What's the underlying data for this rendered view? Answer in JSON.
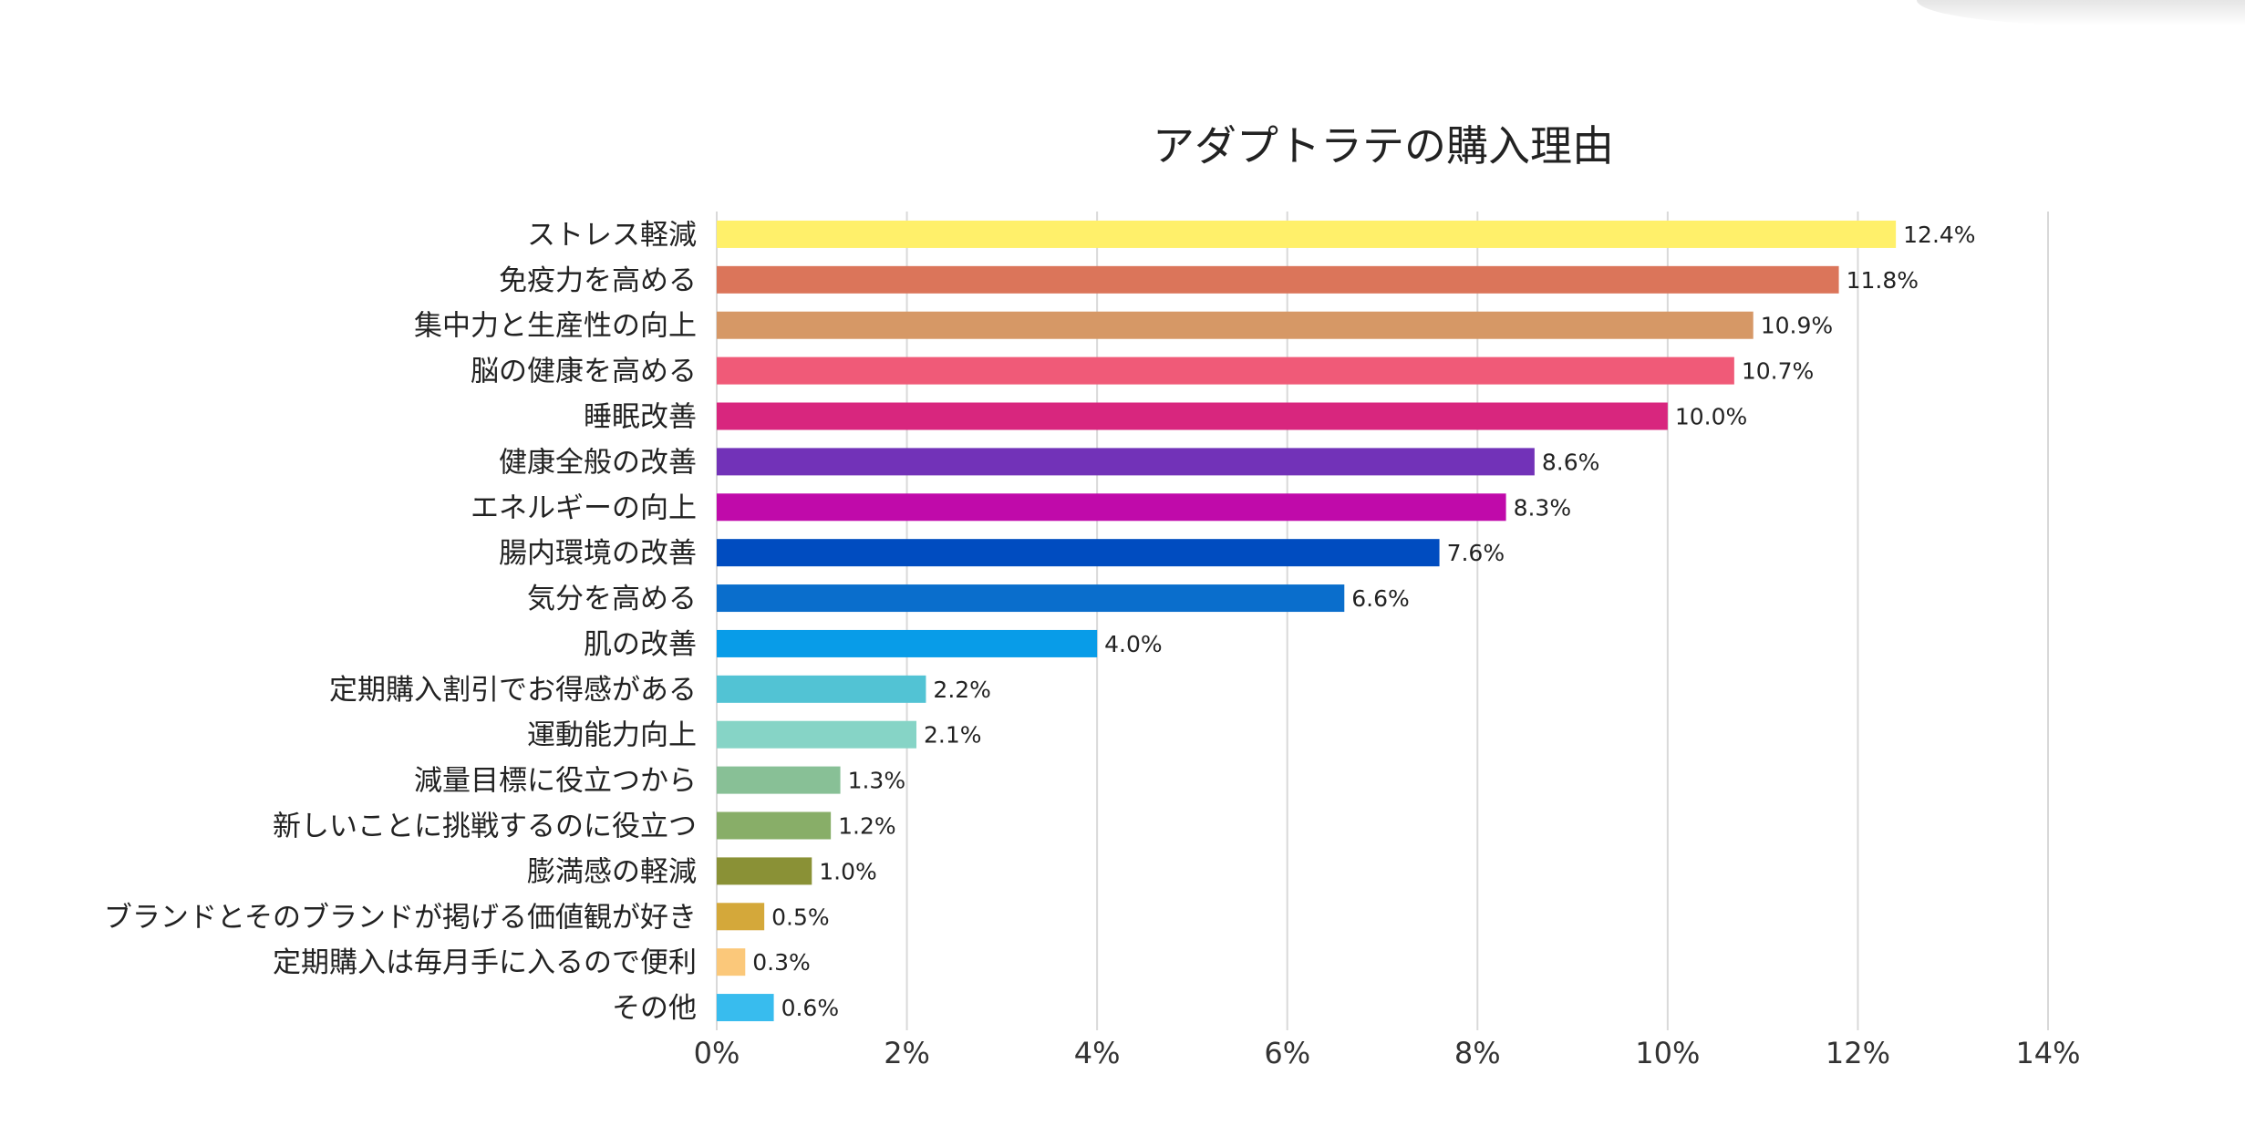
{
  "chart_data": {
    "type": "bar",
    "orientation": "horizontal",
    "title": "アダプトラテの購入理由",
    "xlabel": "",
    "ylabel": "",
    "xlim": [
      0,
      14
    ],
    "x_ticks": [
      0,
      2,
      4,
      6,
      8,
      10,
      12,
      14
    ],
    "x_tick_labels": [
      "0%",
      "2%",
      "4%",
      "6%",
      "8%",
      "10%",
      "12%",
      "14%"
    ],
    "grid": true,
    "legend": "none",
    "categories": [
      "ストレス軽減",
      "免疫力を高める",
      "集中力と生産性の向上",
      "脳の健康を高める",
      "睡眠改善",
      "健康全般の改善",
      "エネルギーの向上",
      "腸内環境の改善",
      "気分を高める",
      "肌の改善",
      "定期購入割引でお得感がある",
      "運動能力向上",
      "減量目標に役立つから",
      "新しいことに挑戦するのに役立つ",
      "膨満感の軽減",
      "ブランドとそのブランドが掲げる価値観が好き",
      "定期購入は毎月手に入るので便利",
      "その他"
    ],
    "values": [
      12.4,
      11.8,
      10.9,
      10.7,
      10.0,
      8.6,
      8.3,
      7.6,
      6.6,
      4.0,
      2.2,
      2.1,
      1.3,
      1.2,
      1.0,
      0.5,
      0.3,
      0.6
    ],
    "value_labels": [
      "12.4%",
      "11.8%",
      "10.9%",
      "10.7%",
      "10.0%",
      "8.6%",
      "8.3%",
      "7.6%",
      "6.6%",
      "4.0%",
      "2.2%",
      "2.1%",
      "1.3%",
      "1.2%",
      "1.0%",
      "0.5%",
      "0.3%",
      "0.6%"
    ],
    "colors": [
      "#FFF06A",
      "#DB755A",
      "#D69866",
      "#F05A78",
      "#D8267E",
      "#7232B8",
      "#C00AAA",
      "#004CC0",
      "#0A6ECC",
      "#089CE8",
      "#52C3D4",
      "#86D4C6",
      "#88C096",
      "#88AE68",
      "#8A9136",
      "#D4A83A",
      "#FBC87A",
      "#38BCEE"
    ]
  }
}
